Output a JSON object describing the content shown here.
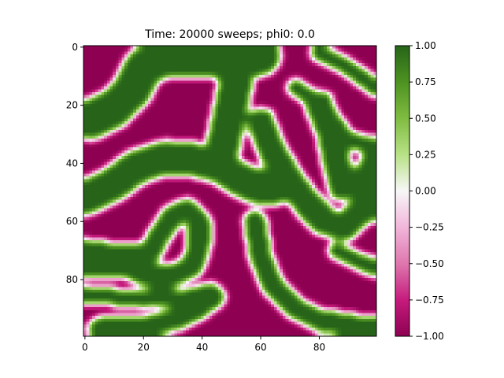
{
  "chart_data": {
    "type": "heatmap",
    "title": "Time: 20000 sweeps; phi0: 0.0",
    "xlabel": "",
    "ylabel": "",
    "grid_size": [
      100,
      100
    ],
    "xlim": [
      0,
      99
    ],
    "ylim": [
      99,
      0
    ],
    "x_ticks": [
      0,
      20,
      40,
      60,
      80
    ],
    "y_ticks": [
      0,
      20,
      40,
      60,
      80
    ],
    "x_tick_labels": [
      "0",
      "20",
      "40",
      "60",
      "80"
    ],
    "y_tick_labels": [
      "0",
      "20",
      "40",
      "60",
      "80"
    ],
    "colormap": "PiYG",
    "value_range": [
      -1.0,
      1.0
    ],
    "colorbar_ticks": [
      1.0,
      0.75,
      0.5,
      0.25,
      0.0,
      -0.25,
      -0.5,
      -0.75,
      -1.0
    ],
    "colorbar_tick_labels": [
      "1.00",
      "0.75",
      "0.50",
      "0.25",
      "0.00",
      "−0.25",
      "−0.50",
      "−0.75",
      "−1.00"
    ],
    "colormap_stops": [
      {
        "v": -1.0,
        "color": "#8e0152"
      },
      {
        "v": -0.75,
        "color": "#c51b7d"
      },
      {
        "v": -0.5,
        "color": "#de77ae"
      },
      {
        "v": -0.25,
        "color": "#f1b6da"
      },
      {
        "v": 0.0,
        "color": "#f7f7f7"
      },
      {
        "v": 0.25,
        "color": "#b8e186"
      },
      {
        "v": 0.5,
        "color": "#7fbc41"
      },
      {
        "v": 0.75,
        "color": "#4d9221"
      },
      {
        "v": 1.0,
        "color": "#276419"
      }
    ],
    "phase_field": {
      "description_of_values": "order parameter phi on a 100x100 lattice, approx +1 (green) or -1 (magenta) with thin interfaces",
      "approximate_domain_centerlines": [
        {
          "phase": 1.0,
          "points": [
            [
              5,
              97
            ],
            [
              22,
              96
            ],
            [
              33,
              93
            ],
            [
              40,
              89
            ],
            [
              44,
              86
            ]
          ],
          "halfwidth": 4
        },
        {
          "phase": 1.0,
          "points": [
            [
              0,
              85
            ],
            [
              20,
              87
            ],
            [
              35,
              86
            ],
            [
              43,
              84
            ]
          ],
          "halfwidth": 3
        },
        {
          "phase": 1.0,
          "points": [
            [
              0,
              70
            ],
            [
              14,
              72
            ],
            [
              22,
              71
            ],
            [
              26,
              64
            ],
            [
              30,
              58
            ],
            [
              35,
              56
            ],
            [
              39,
              60
            ],
            [
              39,
              68
            ],
            [
              37,
              75
            ],
            [
              30,
              79
            ],
            [
              22,
              79
            ],
            [
              15,
              76
            ],
            [
              0,
              75
            ]
          ],
          "halfwidth": 4
        },
        {
          "phase": 1.0,
          "points": [
            [
              0,
              52
            ],
            [
              10,
              47
            ],
            [
              18,
              41
            ],
            [
              28,
              38
            ],
            [
              38,
              39
            ],
            [
              46,
              41
            ],
            [
              52,
              45
            ],
            [
              58,
              48
            ],
            [
              66,
              48
            ]
          ],
          "halfwidth": 6
        },
        {
          "phase": 1.0,
          "points": [
            [
              2,
              25
            ],
            [
              10,
              21
            ],
            [
              16,
              15
            ],
            [
              20,
              7
            ],
            [
              28,
              3
            ],
            [
              40,
              3
            ],
            [
              50,
              5
            ],
            [
              60,
              3
            ]
          ],
          "halfwidth": 7
        },
        {
          "phase": 1.0,
          "points": [
            [
              46,
              40
            ],
            [
              48,
              30
            ],
            [
              50,
              20
            ],
            [
              52,
              10
            ],
            [
              54,
              2
            ]
          ],
          "halfwidth": 6
        },
        {
          "phase": 1.0,
          "points": [
            [
              60,
              26
            ],
            [
              64,
              36
            ],
            [
              70,
              46
            ],
            [
              76,
              54
            ],
            [
              82,
              60
            ],
            [
              88,
              62
            ],
            [
              95,
              56
            ],
            [
              99,
              52
            ]
          ],
          "halfwidth": 5
        },
        {
          "phase": 1.0,
          "points": [
            [
              58,
              60
            ],
            [
              60,
              72
            ],
            [
              64,
              82
            ],
            [
              72,
              90
            ],
            [
              80,
              94
            ],
            [
              92,
              96
            ],
            [
              99,
              97
            ]
          ],
          "halfwidth": 4
        },
        {
          "phase": 1.0,
          "points": [
            [
              80,
              20
            ],
            [
              84,
              30
            ],
            [
              86,
              40
            ],
            [
              88,
              48
            ],
            [
              96,
              46
            ],
            [
              99,
              40
            ]
          ],
          "halfwidth": 5
        },
        {
          "phase": 1.0,
          "points": [
            [
              72,
              14
            ],
            [
              78,
              18
            ],
            [
              84,
              24
            ],
            [
              90,
              32
            ],
            [
              98,
              34
            ]
          ],
          "halfwidth": 3
        },
        {
          "phase": 1.0,
          "points": [
            [
              86,
              70
            ],
            [
              94,
              74
            ],
            [
              99,
              76
            ]
          ],
          "halfwidth": 3
        },
        {
          "phase": 1.0,
          "points": [
            [
              80,
              2
            ],
            [
              88,
              6
            ],
            [
              94,
              10
            ],
            [
              99,
              14
            ]
          ],
          "halfwidth": 3
        }
      ]
    }
  }
}
